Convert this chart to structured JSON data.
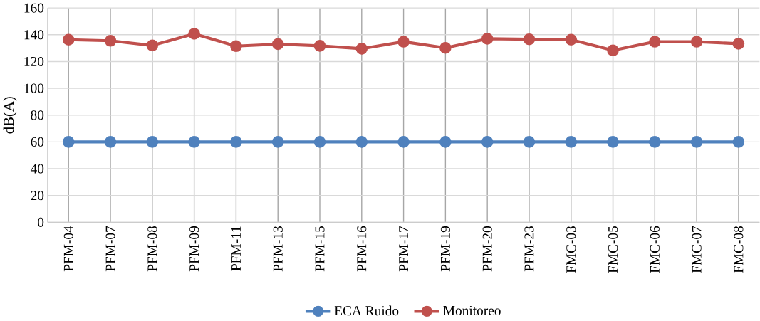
{
  "chart_data": {
    "type": "line",
    "ylabel": "dB(A)",
    "categories": [
      "PFM-04",
      "PFM-07",
      "PFM-08",
      "PFM-09",
      "PFM-11",
      "PFM-13",
      "PFM-15",
      "PFM-16",
      "PFM-17",
      "PFM-19",
      "PFM-20",
      "PFM-23",
      "FMC-03",
      "FMC-05",
      "FMC-06",
      "FMC-07",
      "FMC-08"
    ],
    "series": [
      {
        "name": "ECA Ruido",
        "color": "#4f81bd",
        "values": [
          60,
          60,
          60,
          60,
          60,
          60,
          60,
          60,
          60,
          60,
          60,
          60,
          60,
          60,
          60,
          60,
          60
        ]
      },
      {
        "name": "Monitoreo",
        "color": "#c0504d",
        "values": [
          136.3,
          135.5,
          132,
          140.7,
          131.5,
          133,
          131.7,
          129.6,
          134.8,
          130.2,
          137,
          136.6,
          136.3,
          128.3,
          134.8,
          134.8,
          133.3
        ]
      }
    ],
    "ylim": [
      0,
      160
    ],
    "yticks": [
      0,
      20,
      40,
      60,
      80,
      100,
      120,
      140,
      160
    ],
    "grid": true,
    "legend": "bottom",
    "marker": "circle",
    "line_style": "solid"
  }
}
